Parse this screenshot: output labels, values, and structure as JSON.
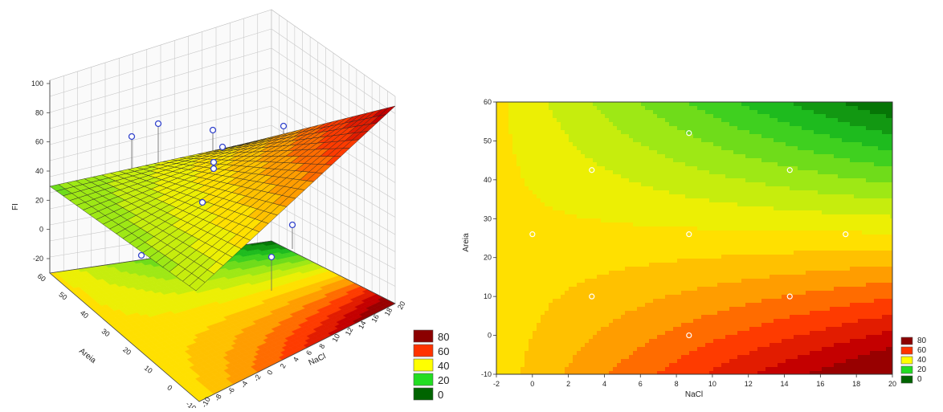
{
  "chart_data": [
    {
      "type": "surface3d",
      "title": "",
      "xlabel": "NaCl",
      "ylabel": "Areia",
      "zlabel": "FI",
      "x_ticks": [
        -10,
        -8,
        -6,
        -4,
        -2,
        0,
        2,
        4,
        6,
        8,
        10,
        12,
        14,
        16,
        18,
        20
      ],
      "y_ticks": [
        -10,
        0,
        10,
        20,
        30,
        40,
        50,
        60
      ],
      "z_ticks": [
        -20,
        0,
        20,
        40,
        60,
        80,
        100
      ],
      "xlim": [
        -10,
        20
      ],
      "ylim": [
        -10,
        60
      ],
      "zlim": [
        -20,
        100
      ],
      "grid": true,
      "legend": {
        "placement": "bottom-right",
        "entries": [
          "80",
          "60",
          "40",
          "20",
          "0"
        ]
      }
    },
    {
      "type": "contour",
      "title": "",
      "xlabel": "NaCl",
      "ylabel": "Areia",
      "x_ticks": [
        -2,
        0,
        2,
        4,
        6,
        8,
        10,
        12,
        14,
        16,
        18,
        20
      ],
      "y_ticks": [
        -10,
        0,
        10,
        20,
        30,
        40,
        50,
        60
      ],
      "xlim": [
        -2,
        20
      ],
      "ylim": [
        -10,
        60
      ],
      "points": [
        {
          "x": 0,
          "y": 26
        },
        {
          "x": 3.3,
          "y": 42.5
        },
        {
          "x": 3.3,
          "y": 10
        },
        {
          "x": 8.7,
          "y": 52
        },
        {
          "x": 8.7,
          "y": 26
        },
        {
          "x": 8.7,
          "y": 0
        },
        {
          "x": 14.3,
          "y": 42.5
        },
        {
          "x": 14.3,
          "y": 10
        },
        {
          "x": 17.4,
          "y": 26
        }
      ],
      "legend": {
        "placement": "bottom-right",
        "entries": [
          "80",
          "60",
          "40",
          "20",
          "0"
        ]
      }
    }
  ],
  "legend_colors": [
    "#8b0000",
    "#ff3300",
    "#ffff00",
    "#22dd22",
    "#006400"
  ]
}
